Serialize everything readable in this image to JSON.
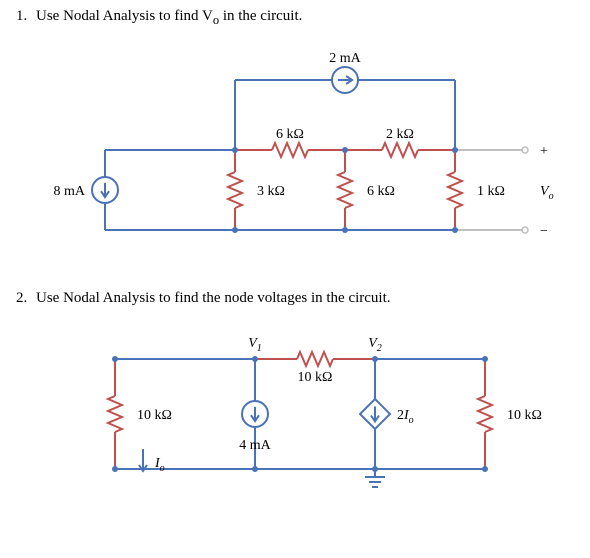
{
  "problem1": {
    "number": "1.",
    "text_a": "Use Nodal Analysis to find V",
    "text_sub": "o",
    "text_b": " in the circuit.",
    "circuit": {
      "wire_color": "#4a72b8",
      "comp_color": "#c0504d",
      "text_color": "#000000",
      "I_top": "2 mA",
      "I_left": "8 mA",
      "R_top_left": "6 kΩ",
      "R_top_mid": "2 kΩ",
      "R_v_1": "3 kΩ",
      "R_v_2": "6 kΩ",
      "R_v_3": "1 kΩ",
      "Vo_label_top": "+",
      "Vo_label_mid_a": "V",
      "Vo_label_mid_sub": "o",
      "Vo_label_bot": "−"
    }
  },
  "problem2": {
    "number": "2.",
    "text": "Use Nodal Analysis to find the node voltages in the circuit.",
    "circuit": {
      "wire_color": "#4a72b8",
      "comp_color": "#c0504d",
      "text_color": "#000000",
      "V1_a": "V",
      "V1_sub": "1",
      "V2_a": "V",
      "V2_sub": "2",
      "R_mid": "10 kΩ",
      "R_left": "10 kΩ",
      "R_right": "10 kΩ",
      "I_src": "4 mA",
      "dep_a": "2",
      "dep_b": "I",
      "dep_sub": "o",
      "Io_a": "I",
      "Io_sub": "o"
    }
  }
}
